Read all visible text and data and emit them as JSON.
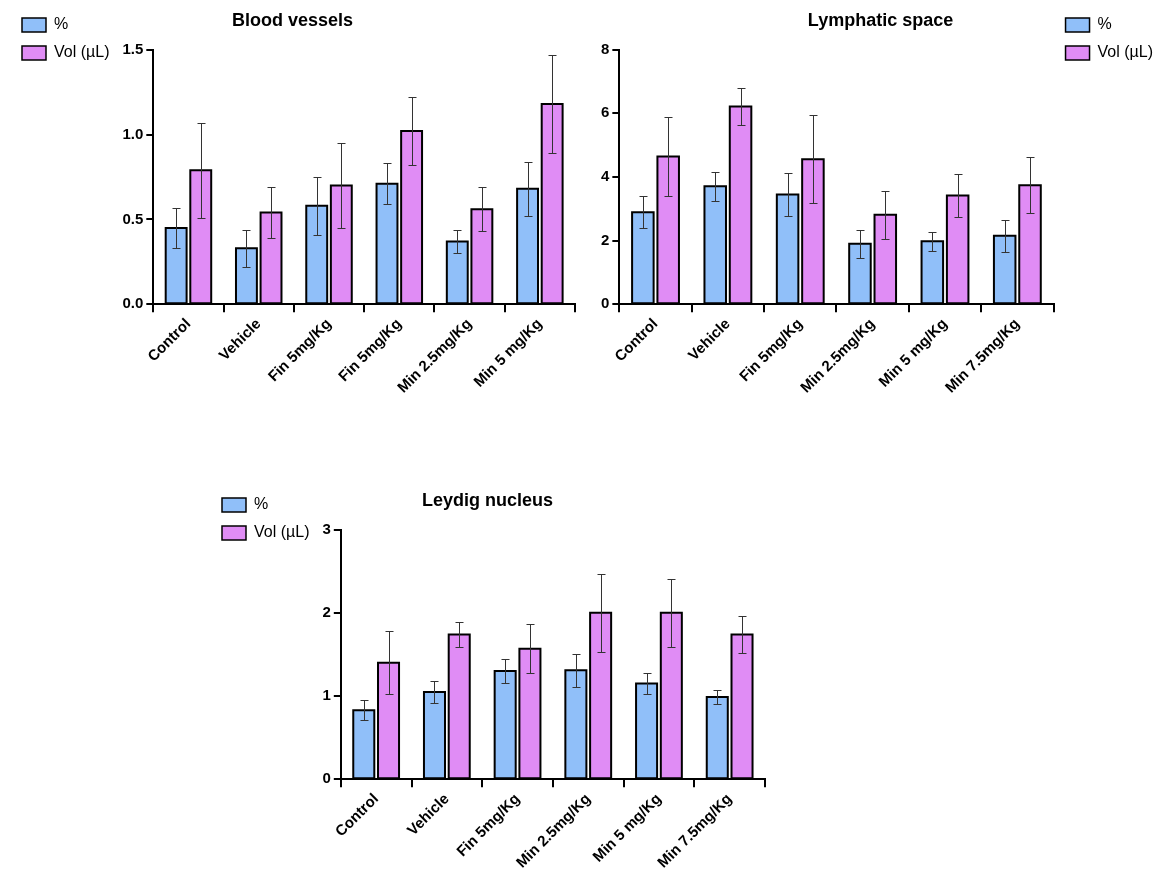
{
  "chart_data": [
    {
      "type": "bar",
      "title": "Blood vessels",
      "categories": [
        "Control",
        "Vehicle",
        "Fin 5mg/Kg",
        "Fin 5mg/Kg",
        "Min 2.5mg/Kg",
        "Min 5 mg/Kg"
      ],
      "series": [
        {
          "name": "%",
          "color": "#90bff9",
          "values": [
            0.45,
            0.33,
            0.58,
            0.71,
            0.37,
            0.68
          ],
          "errors": [
            0.12,
            0.11,
            0.17,
            0.12,
            0.07,
            0.16
          ]
        },
        {
          "name": "Vol (µL)",
          "color": "#e08cf5",
          "values": [
            0.79,
            0.54,
            0.7,
            1.02,
            0.56,
            1.18
          ],
          "errors": [
            0.28,
            0.15,
            0.25,
            0.2,
            0.13,
            0.29
          ]
        }
      ],
      "ylim": [
        0,
        1.5
      ],
      "yticks": [
        {
          "value": 0,
          "label": "0.0"
        },
        {
          "value": 0.5,
          "label": "0.5"
        },
        {
          "value": 1,
          "label": "1.0"
        },
        {
          "value": 1.5,
          "label": "1.5"
        }
      ],
      "grid": false,
      "legend": "left"
    },
    {
      "type": "bar",
      "title": "Lymphatic space",
      "categories": [
        "Control",
        "Vehicle",
        "Fin 5mg/Kg",
        "Min 2.5mg/Kg",
        "Min 5 mg/Kg",
        "Min 7.5mg/Kg"
      ],
      "series": [
        {
          "name": "%",
          "color": "#90bff9",
          "values": [
            2.89,
            3.71,
            3.45,
            1.9,
            1.98,
            2.15
          ],
          "errors": [
            0.5,
            0.45,
            0.68,
            0.44,
            0.29,
            0.5
          ]
        },
        {
          "name": "Vol (µL)",
          "color": "#e08cf5",
          "values": [
            4.64,
            6.21,
            4.56,
            2.81,
            3.42,
            3.74
          ],
          "errors": [
            1.23,
            0.57,
            1.39,
            0.76,
            0.68,
            0.88
          ]
        }
      ],
      "ylim": [
        0,
        8
      ],
      "yticks": [
        0,
        2,
        4,
        6,
        8
      ],
      "grid": false,
      "legend": "right"
    },
    {
      "type": "bar",
      "title": "Leydig nucleus",
      "categories": [
        "Control",
        "Vehicle",
        "Fin 5mg/Kg",
        "Min 2.5mg/Kg",
        "Min 5 mg/Kg",
        "Min 7.5mg/Kg"
      ],
      "series": [
        {
          "name": "%",
          "color": "#90bff9",
          "values": [
            0.83,
            1.05,
            1.3,
            1.31,
            1.15,
            0.99
          ],
          "errors": [
            0.12,
            0.13,
            0.14,
            0.2,
            0.13,
            0.08
          ]
        },
        {
          "name": "Vol (µL)",
          "color": "#e08cf5",
          "values": [
            1.4,
            1.74,
            1.57,
            2.0,
            2.0,
            1.74
          ],
          "errors": [
            0.38,
            0.15,
            0.29,
            0.47,
            0.41,
            0.22
          ]
        }
      ],
      "ylim": [
        0,
        3
      ],
      "yticks": [
        0,
        1,
        2,
        3
      ],
      "grid": false,
      "legend": "left"
    }
  ]
}
